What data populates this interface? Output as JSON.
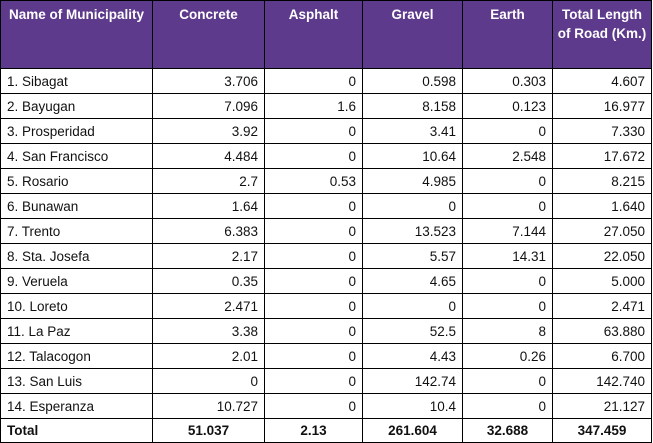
{
  "table": {
    "headers": [
      "Name of Municipality",
      "Concrete",
      "Asphalt",
      "Gravel",
      "Earth",
      "Total Length of Road (Km.)"
    ],
    "header_bg": "#5e3a8c",
    "rows": [
      [
        "1. Sibagat",
        "3.706",
        "0",
        "0.598",
        "0.303",
        "4.607"
      ],
      [
        "2. Bayugan",
        "7.096",
        "1.6",
        "8.158",
        "0.123",
        "16.977"
      ],
      [
        "3. Prosperidad",
        "3.92",
        "0",
        "3.41",
        "0",
        "7.330"
      ],
      [
        "4. San Francisco",
        "4.484",
        "0",
        "10.64",
        "2.548",
        "17.672"
      ],
      [
        "5. Rosario",
        "2.7",
        "0.53",
        "4.985",
        "0",
        "8.215"
      ],
      [
        "6. Bunawan",
        "1.64",
        "0",
        "0",
        "0",
        "1.640"
      ],
      [
        "7. Trento",
        "6.383",
        "0",
        "13.523",
        "7.144",
        "27.050"
      ],
      [
        "8. Sta. Josefa",
        "2.17",
        "0",
        "5.57",
        "14.31",
        "22.050"
      ],
      [
        "9. Veruela",
        "0.35",
        "0",
        "4.65",
        "0",
        "5.000"
      ],
      [
        "10. Loreto",
        "2.471",
        "0",
        "0",
        "0",
        "2.471"
      ],
      [
        "11. La Paz",
        "3.38",
        "0",
        "52.5",
        "8",
        "63.880"
      ],
      [
        "12. Talacogon",
        "2.01",
        "0",
        "4.43",
        "0.26",
        "6.700"
      ],
      [
        "13. San Luis",
        "0",
        "0",
        "142.74",
        "0",
        "142.740"
      ],
      [
        "14. Esperanza",
        "10.727",
        "0",
        "10.4",
        "0",
        "21.127"
      ]
    ],
    "total": [
      "Total",
      "51.037",
      "2.13",
      "261.604",
      "32.688",
      "347.459"
    ]
  }
}
